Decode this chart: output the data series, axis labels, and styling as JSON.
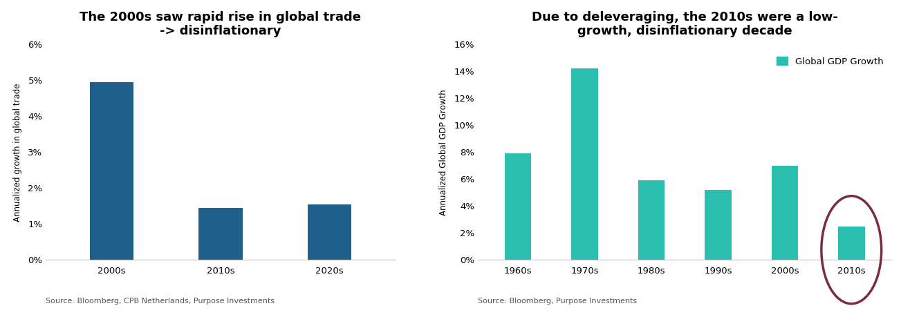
{
  "chart1": {
    "title": "The 2000s saw rapid rise in global trade\n-> disinflationary",
    "categories": [
      "2000s",
      "2010s",
      "2020s"
    ],
    "values": [
      4.95,
      1.45,
      1.55
    ],
    "bar_color": "#1f5f8b",
    "ylabel": "Annualized growth in global trade",
    "ylim": [
      0,
      0.06
    ],
    "yticks": [
      0,
      0.01,
      0.02,
      0.03,
      0.04,
      0.05,
      0.06
    ],
    "ytick_labels": [
      "0%",
      "1%",
      "2%",
      "3%",
      "4%",
      "5%",
      "6%"
    ],
    "source": "Source: Bloomberg, CPB Netherlands, Purpose Investments"
  },
  "chart2": {
    "title": "Due to deleveraging, the 2010s were a low-\ngrowth, disinflationary decade",
    "categories": [
      "1960s",
      "1970s",
      "1980s",
      "1990s",
      "2000s",
      "2010s"
    ],
    "values": [
      7.9,
      14.2,
      5.9,
      5.2,
      7.0,
      2.5
    ],
    "bar_color": "#2bbfb0",
    "ylabel": "Annualized Global GDP Growth",
    "ylim": [
      0,
      0.16
    ],
    "yticks": [
      0,
      0.02,
      0.04,
      0.06,
      0.08,
      0.1,
      0.12,
      0.14,
      0.16
    ],
    "ytick_labels": [
      "0%",
      "2%",
      "4%",
      "6%",
      "8%",
      "10%",
      "12%",
      "14%",
      "16%"
    ],
    "legend_label": "Global GDP Growth",
    "source": "Source: Bloomberg, Purpose Investments",
    "ellipse_bar_index": 5,
    "ellipse_color": "#7b2d3e"
  },
  "background_color": "#ffffff",
  "title_fontsize": 13,
  "label_fontsize": 8.5,
  "tick_fontsize": 9.5,
  "source_fontsize": 8
}
